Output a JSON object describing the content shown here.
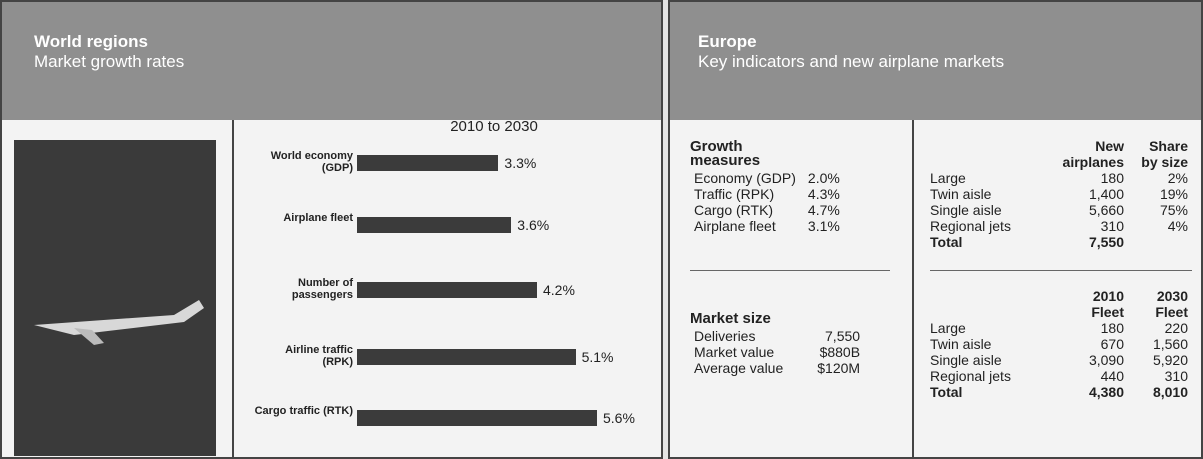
{
  "left": {
    "title": "World regions",
    "subtitle": "Market growth rates"
  },
  "chart_data": {
    "type": "bar",
    "title": "2010 to 2030",
    "categories": [
      "World economy (GDP)",
      "Airplane fleet",
      "Number of passengers",
      "Airline traffic (RPK)",
      "Cargo traffic (RTK)"
    ],
    "values": [
      3.3,
      3.6,
      4.2,
      5.1,
      5.6
    ],
    "value_labels": [
      "3.3%",
      "3.6%",
      "4.2%",
      "5.1%",
      "5.6%"
    ],
    "color": "#3b3b3b"
  },
  "right": {
    "title": "Europe",
    "subtitle": "Key indicators and new airplane markets",
    "growth": {
      "heading": "Growth measures",
      "rows": [
        [
          "Economy (GDP)",
          "2.0%"
        ],
        [
          "Traffic (RPK)",
          "4.3%"
        ],
        [
          "Cargo (RTK)",
          "4.7%"
        ],
        [
          "Airplane fleet",
          "3.1%"
        ]
      ]
    },
    "market": {
      "heading": "Market size",
      "rows": [
        [
          "Deliveries",
          "7,550"
        ],
        [
          "Market value",
          "$880B"
        ],
        [
          "Average value",
          "$120M"
        ]
      ]
    },
    "new_airplanes": {
      "columns": [
        "New airplanes",
        "Share by size"
      ],
      "rows": [
        [
          "Large",
          "180",
          "2%"
        ],
        [
          "Twin aisle",
          "1,400",
          "19%"
        ],
        [
          "Single aisle",
          "5,660",
          "75%"
        ],
        [
          "Regional jets",
          "310",
          "4%"
        ],
        [
          "Total",
          "7,550"
        ]
      ]
    },
    "fleet": {
      "columns": [
        "2010 Fleet",
        "2030 Fleet"
      ],
      "rows": [
        [
          "Large",
          "180",
          "220"
        ],
        [
          "Twin aisle",
          "670",
          "1,560"
        ],
        [
          "Single aisle",
          "3,090",
          "5,920"
        ],
        [
          "Regional jets",
          "440",
          "310"
        ],
        [
          "Total",
          "4,380",
          "8,010"
        ]
      ]
    }
  }
}
